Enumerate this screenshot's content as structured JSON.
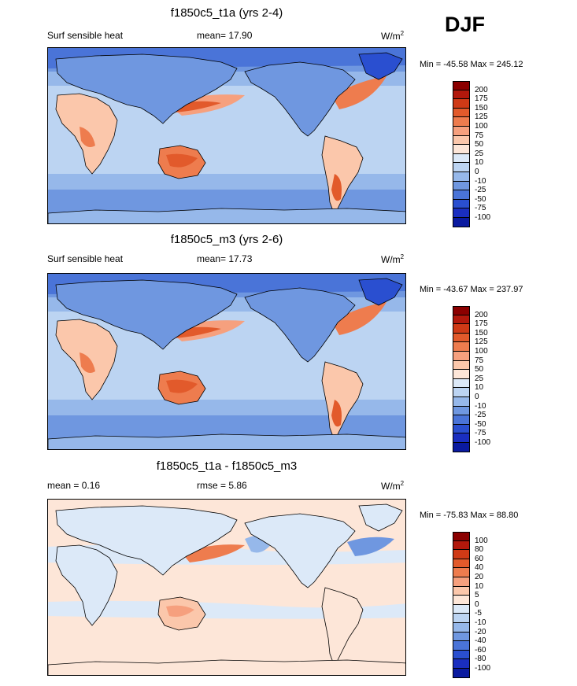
{
  "season": "DJF",
  "panels": [
    {
      "id": "t1a",
      "title": "f1850c5_t1a (yrs 2-4)",
      "left_label": "Surf sensible heat",
      "center_label": "mean=  17.90",
      "units": "W/m",
      "units_exp": "2",
      "minmax": "Min = -45.58 Max = 245.12",
      "kind": "abs",
      "levels": [
        "200",
        "175",
        "150",
        "125",
        "100",
        "75",
        "50",
        "25",
        "10",
        "0",
        "-10",
        "-25",
        "-50",
        "-75",
        "-100"
      ]
    },
    {
      "id": "m3",
      "title": "f1850c5_m3 (yrs 2-6)",
      "left_label": "Surf sensible heat",
      "center_label": "mean=  17.73",
      "units": "W/m",
      "units_exp": "2",
      "minmax": "Min = -43.67 Max = 237.97",
      "kind": "abs",
      "levels": [
        "200",
        "175",
        "150",
        "125",
        "100",
        "75",
        "50",
        "25",
        "10",
        "0",
        "-10",
        "-25",
        "-50",
        "-75",
        "-100"
      ]
    },
    {
      "id": "diff",
      "title": "f1850c5_t1a - f1850c5_m3",
      "left_label": "mean =   0.16",
      "center_label": "rmse =   5.86",
      "units": "W/m",
      "units_exp": "2",
      "minmax": "Min = -75.83 Max =  88.80",
      "kind": "diff",
      "levels": [
        "100",
        "80",
        "60",
        "40",
        "20",
        "10",
        "5",
        "0",
        "-5",
        "-10",
        "-20",
        "-40",
        "-60",
        "-80",
        "-100"
      ]
    }
  ],
  "colors": {
    "scale": [
      "#8b0000",
      "#b2180c",
      "#cf3a16",
      "#e25a2b",
      "#ee7c4e",
      "#f6a07e",
      "#fbc7ab",
      "#fde6d8",
      "#dce9f8",
      "#bcd4f2",
      "#96b8ea",
      "#6f97e0",
      "#4a74d8",
      "#2a4fd0",
      "#1a2ec0",
      "#0a1aa0"
    ],
    "land_outline": "#000000"
  }
}
